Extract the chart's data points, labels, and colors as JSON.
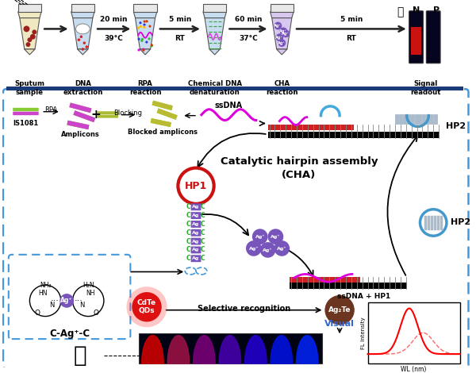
{
  "bg_color": "#ffffff",
  "dashed_box_color": "#4499dd",
  "top_bar_color": "#1a3a7a",
  "step_labels": [
    "Sputum\nsample",
    "DNA\nextraction",
    "RPA\nreaction",
    "Chemical DNA\ndenaturation",
    "CHA\nreaction",
    "Signal\nreadout"
  ],
  "arrow_texts": [
    "20 min\n39°C",
    "5 min\nRT",
    "60 min\n37°C",
    "5 min\nRT"
  ],
  "cha_title": "Catalytic hairpin assembly\n(CHA)",
  "hp1_label": "HP1",
  "hp2_label": "HP2",
  "ssdna_label": "ssDNA",
  "ssdna_hp1_label": "ssDNA + HP1",
  "is1081_label": "IS1081",
  "amplicons_label": "Amplicons",
  "blocked_label": "Blocked amplicons",
  "rpa_label": "RPA",
  "blocking_label": "Blocking",
  "cag_label": "C-Ag⁺-C",
  "cdte_label": "CdTe\nQDs",
  "ag2te_label": "Ag₂Te",
  "sel_label": "Selective recognition",
  "visual_label": "Visual",
  "fl_xlabel": "WL (nm)",
  "fl_ylabel": "FL Intensity",
  "n_label": "N",
  "p_label": "P"
}
